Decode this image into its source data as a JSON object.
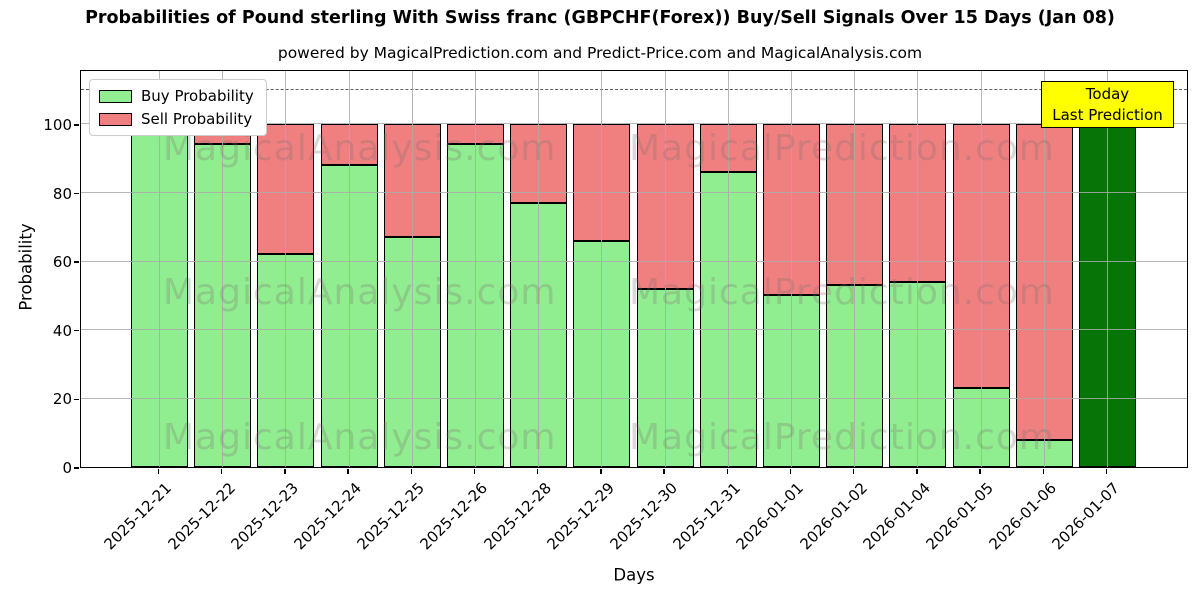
{
  "title": "Probabilities of Pound sterling With Swiss franc (GBPCHF(Forex)) Buy/Sell Signals Over 15 Days (Jan 08)",
  "subtitle": "powered by MagicalPrediction.com and Predict-Price.com and MagicalAnalysis.com",
  "legend": {
    "buy_label": "Buy Probability",
    "sell_label": "Sell Probability"
  },
  "today_box": {
    "line1": "Today",
    "line2": "Last Prediction",
    "bg_color": "#ffff00"
  },
  "axes": {
    "x_label": "Days",
    "y_label": "Probability",
    "y_ticks": [
      0,
      20,
      40,
      60,
      80,
      100
    ]
  },
  "watermarks": {
    "left": "MagicalAnalysis.com",
    "right": "MagicalPrediction.com"
  },
  "colors": {
    "buy": "#90ee90",
    "sell": "#f08080",
    "last_prediction": "#067406",
    "bar_edge": "#000000",
    "grid": "#aaaaaa",
    "dashed_line": "#5f5f5f",
    "today_box_bg": "#ffff00"
  },
  "chart_data": {
    "type": "bar",
    "stacked": true,
    "title": "Probabilities of Pound sterling With Swiss franc (GBPCHF(Forex)) Buy/Sell Signals Over 15 Days (Jan 08)",
    "xlabel": "Days",
    "ylabel": "Probability",
    "ylim": [
      0,
      116
    ],
    "y_ticks": [
      0,
      20,
      40,
      60,
      80,
      100
    ],
    "grid": true,
    "legend_position": "upper left",
    "dashed_hline": 110,
    "categories": [
      "2025-12-21",
      "2025-12-22",
      "2025-12-23",
      "2025-12-24",
      "2025-12-25",
      "2025-12-26",
      "2025-12-28",
      "2025-12-29",
      "2025-12-30",
      "2025-12-31",
      "2026-01-01",
      "2026-01-02",
      "2026-01-04",
      "2026-01-05",
      "2026-01-06",
      "2026-01-07"
    ],
    "series": [
      {
        "name": "Buy Probability",
        "color": "#90ee90",
        "values": [
          100,
          94,
          62,
          88,
          67,
          94,
          77,
          66,
          52,
          86,
          50,
          53,
          54,
          23,
          8,
          0
        ]
      },
      {
        "name": "Sell Probability",
        "color": "#f08080",
        "values": [
          0,
          6,
          38,
          12,
          33,
          6,
          23,
          34,
          48,
          14,
          50,
          47,
          46,
          77,
          92,
          0
        ]
      },
      {
        "name": "Last Prediction",
        "color": "#067406",
        "values": [
          0,
          0,
          0,
          0,
          0,
          0,
          0,
          0,
          0,
          0,
          0,
          0,
          0,
          0,
          0,
          100
        ]
      }
    ]
  }
}
